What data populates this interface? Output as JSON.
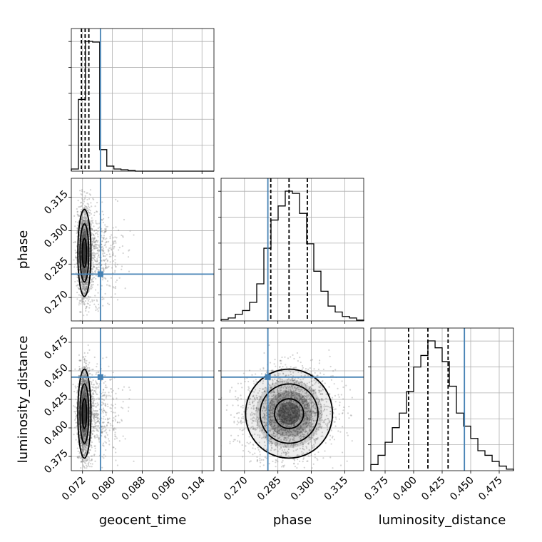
{
  "chart_data": {
    "type": "corner",
    "parameters": [
      "geocent_time",
      "phase",
      "luminosity_distance"
    ],
    "labels": {
      "geocent_time": "geocent_time",
      "phase": "phase",
      "luminosity_distance": "luminosity_distance"
    },
    "ranges": {
      "geocent_time": [
        0.069,
        0.1072
      ],
      "phase": [
        0.2595,
        0.3235
      ],
      "luminosity_distance": [
        0.3625,
        0.4875
      ]
    },
    "ticks": {
      "geocent_time": [
        {
          "value": 0.072,
          "label": "0.072"
        },
        {
          "value": 0.08,
          "label": "0.080"
        },
        {
          "value": 0.088,
          "label": "0.088"
        },
        {
          "value": 0.096,
          "label": "0.096"
        },
        {
          "value": 0.104,
          "label": "0.104"
        }
      ],
      "phase": [
        {
          "value": 0.27,
          "label": "0.270"
        },
        {
          "value": 0.285,
          "label": "0.285"
        },
        {
          "value": 0.3,
          "label": "0.300"
        },
        {
          "value": 0.315,
          "label": "0.315"
        }
      ],
      "luminosity_distance": [
        {
          "value": 0.375,
          "label": "0.375"
        },
        {
          "value": 0.4,
          "label": "0.400"
        },
        {
          "value": 0.425,
          "label": "0.425"
        },
        {
          "value": 0.45,
          "label": "0.450"
        },
        {
          "value": 0.475,
          "label": "0.475"
        }
      ]
    },
    "truths": {
      "geocent_time": 0.0768,
      "phase": 0.2805,
      "luminosity_distance": 0.4445
    },
    "truth_color": "#4682b4",
    "quantiles": {
      "geocent_time": [
        0.0717,
        0.0727,
        0.0737
      ],
      "phase": [
        0.2818,
        0.29,
        0.2982
      ],
      "luminosity_distance": [
        0.3956,
        0.4125,
        0.4302
      ]
    },
    "histograms": {
      "geocent_time": {
        "edges": [
          0.069,
          0.0709,
          0.0728,
          0.0747,
          0.0766,
          0.0785,
          0.0804,
          0.0823,
          0.0842,
          0.0861,
          0.088,
          0.0899,
          0.0918,
          0.0937,
          0.0956,
          0.0975,
          0.0994,
          0.1013,
          0.1032,
          0.1051,
          0.1072
        ],
        "counts": [
          3,
          100,
          181,
          180,
          30,
          7,
          3,
          2,
          1,
          0,
          0,
          0,
          0,
          0,
          0,
          0,
          0,
          0,
          0,
          0
        ]
      },
      "phase": {
        "edges": [
          0.2595,
          0.2627,
          0.2659,
          0.2691,
          0.2723,
          0.2755,
          0.2787,
          0.2819,
          0.2851,
          0.2883,
          0.2915,
          0.2947,
          0.2979,
          0.3011,
          0.3043,
          0.3075,
          0.3107,
          0.3139,
          0.3171,
          0.3203,
          0.3235
        ],
        "counts": [
          2,
          4,
          9,
          14,
          25,
          50,
          98,
          136,
          155,
          175,
          172,
          145,
          104,
          67,
          40,
          20,
          12,
          6,
          4,
          1
        ]
      },
      "luminosity_distance": {
        "edges": [
          0.3625,
          0.3688,
          0.375,
          0.3813,
          0.3875,
          0.3938,
          0.4,
          0.4063,
          0.4125,
          0.4188,
          0.425,
          0.4313,
          0.4375,
          0.4438,
          0.45,
          0.4563,
          0.4625,
          0.4688,
          0.475,
          0.4813,
          0.4875
        ],
        "counts": [
          8,
          20,
          37,
          56,
          75,
          103,
          135,
          150,
          169,
          160,
          142,
          110,
          75,
          58,
          42,
          26,
          20,
          12,
          6,
          2
        ]
      }
    },
    "scatter_model": {
      "geocent_time": {
        "mean": 0.0725,
        "sd": 0.0009
      },
      "phase": {
        "mean": 0.29,
        "sd": 0.01
      },
      "luminosity_distance": {
        "mean": 0.4125,
        "sd": 0.02
      },
      "geocent_time_tail_fraction": 0.18,
      "n_points": 2200
    },
    "contour_levels": 3,
    "grid": true,
    "point_color": "#808080",
    "contour_color": "#000000"
  }
}
